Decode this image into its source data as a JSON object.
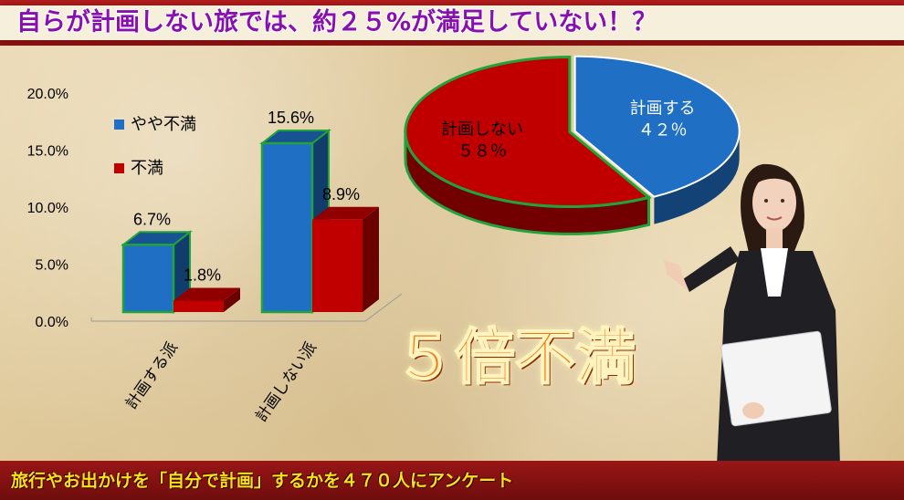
{
  "header": {
    "title": "自らが計画しない旅では、約２５%が満足していない！？"
  },
  "footer": {
    "text": "旅行やお出かけを「自分で計画」するかを４７０人にアンケート"
  },
  "callout": {
    "text": "５倍不満"
  },
  "colors": {
    "blue": "#1f6fc4",
    "red": "#c00000",
    "outline": "#22a33a",
    "title": "#8a0fb0",
    "callout": "#f17a12",
    "footer": "#f7e21a"
  },
  "chart_data": [
    {
      "type": "bar",
      "title": "",
      "categories": [
        "計画する派",
        "計画しない派"
      ],
      "series": [
        {
          "name": "やや不満",
          "values": [
            6.7,
            15.6
          ],
          "labels": [
            "6.7%",
            "15.6%"
          ],
          "color": "#1f6fc4"
        },
        {
          "name": "不満",
          "values": [
            1.8,
            8.9
          ],
          "labels": [
            "1.8%",
            "8.9%"
          ],
          "color": "#c00000"
        }
      ],
      "yticks": [
        "0.0%",
        "5.0%",
        "10.0%",
        "15.0%",
        "20.0%"
      ],
      "ylim": [
        0,
        20
      ],
      "legend_position": "left-inside",
      "style": "3d"
    },
    {
      "type": "pie",
      "title": "",
      "slices": [
        {
          "name": "計画する",
          "value": 42,
          "label": "４２％",
          "color": "#1f6fc4"
        },
        {
          "name": "計画しない",
          "value": 58,
          "label": "５８％",
          "color": "#c00000"
        }
      ],
      "style": "3d"
    }
  ]
}
